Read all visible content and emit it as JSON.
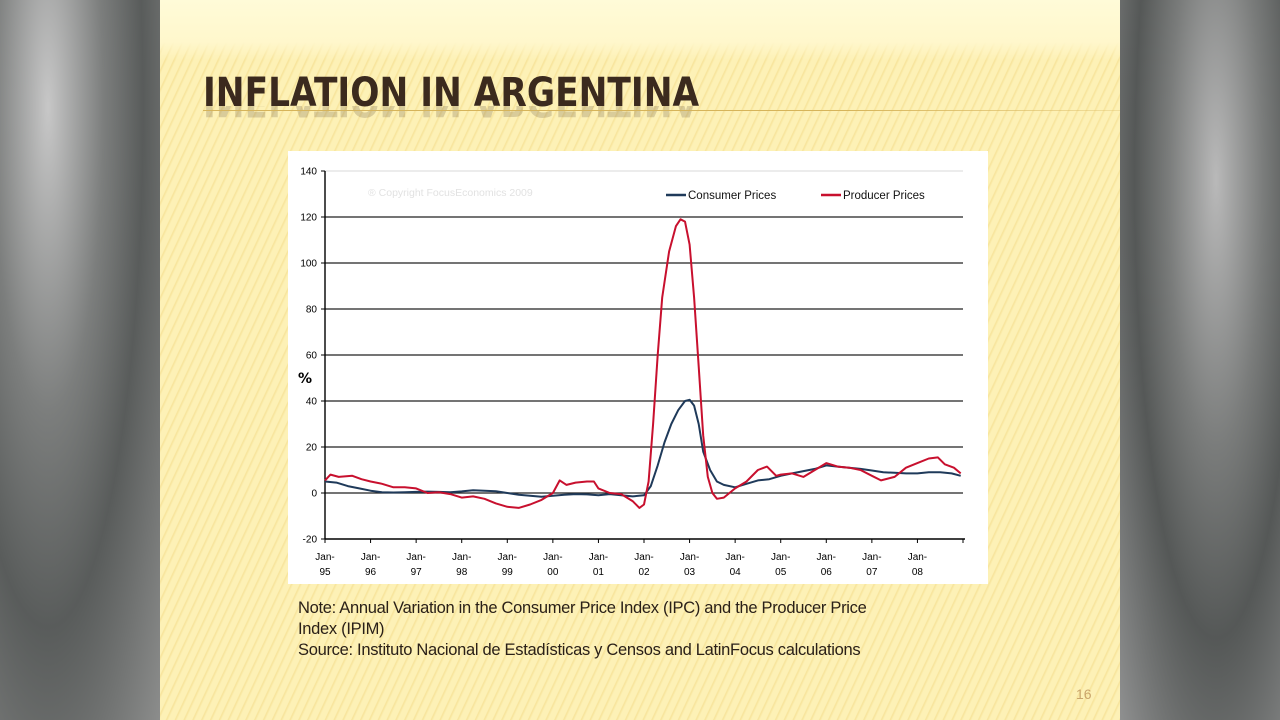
{
  "slide": {
    "title": "INFLATION IN ARGENTINA",
    "note_line1": "Note: Annual Variation in the Consumer Price Index (IPC) and the Producer Price",
    "note_line2": "Index (IPIM)",
    "source": "Source: Instituto Nacional de Estadísticas y Censos and LatinFocus calculations",
    "page_number": "16"
  },
  "chart_data": {
    "type": "line",
    "title": "",
    "watermark": "® Copyright FocusEconomics 2009",
    "xlabel": "",
    "ylabel": "%",
    "ylim": [
      -20,
      140
    ],
    "yticks": [
      -20,
      0,
      20,
      40,
      60,
      80,
      100,
      120,
      140
    ],
    "ytick_labels": [
      "-20",
      "0",
      "20",
      "40",
      "60",
      "80",
      "100",
      "120",
      "140"
    ],
    "xlim": [
      1995.0,
      2009.0
    ],
    "xticks": [
      1995,
      1996,
      1997,
      1998,
      1999,
      2000,
      2001,
      2002,
      2003,
      2004,
      2005,
      2006,
      2007,
      2008
    ],
    "xtick_labels": [
      [
        "Jan-",
        "95"
      ],
      [
        "Jan-",
        "96"
      ],
      [
        "Jan-",
        "97"
      ],
      [
        "Jan-",
        "98"
      ],
      [
        "Jan-",
        "99"
      ],
      [
        "Jan-",
        "00"
      ],
      [
        "Jan-",
        "01"
      ],
      [
        "Jan-",
        "02"
      ],
      [
        "Jan-",
        "03"
      ],
      [
        "Jan-",
        "04"
      ],
      [
        "Jan-",
        "05"
      ],
      [
        "Jan-",
        "06"
      ],
      [
        "Jan-",
        "07"
      ],
      [
        "Jan-",
        "08"
      ]
    ],
    "grid": true,
    "legend_position": "top-right",
    "series": [
      {
        "name": "Consumer Prices",
        "color": "#1f3a5a",
        "points": [
          [
            1995.0,
            5
          ],
          [
            1995.25,
            4.5
          ],
          [
            1995.5,
            3
          ],
          [
            1995.75,
            2
          ],
          [
            1996.0,
            1
          ],
          [
            1996.25,
            0.3
          ],
          [
            1996.5,
            0.2
          ],
          [
            1996.75,
            0.3
          ],
          [
            1997.0,
            0.5
          ],
          [
            1997.25,
            0.6
          ],
          [
            1997.5,
            0.5
          ],
          [
            1997.75,
            0.3
          ],
          [
            1998.0,
            0.7
          ],
          [
            1998.25,
            1.2
          ],
          [
            1998.5,
            1
          ],
          [
            1998.75,
            0.8
          ],
          [
            1999.0,
            0
          ],
          [
            1999.25,
            -0.8
          ],
          [
            1999.5,
            -1.2
          ],
          [
            1999.75,
            -1.6
          ],
          [
            2000.0,
            -1.2
          ],
          [
            2000.25,
            -0.8
          ],
          [
            2000.5,
            -0.5
          ],
          [
            2000.75,
            -0.6
          ],
          [
            2001.0,
            -1
          ],
          [
            2001.25,
            -0.5
          ],
          [
            2001.5,
            -1
          ],
          [
            2001.75,
            -1.5
          ],
          [
            2002.0,
            -1
          ],
          [
            2002.15,
            3
          ],
          [
            2002.3,
            12
          ],
          [
            2002.45,
            22
          ],
          [
            2002.6,
            30
          ],
          [
            2002.75,
            36
          ],
          [
            2002.9,
            40
          ],
          [
            2003.0,
            40.5
          ],
          [
            2003.1,
            38
          ],
          [
            2003.2,
            30
          ],
          [
            2003.3,
            18
          ],
          [
            2003.45,
            10
          ],
          [
            2003.6,
            5
          ],
          [
            2003.75,
            3.5
          ],
          [
            2004.0,
            2.5
          ],
          [
            2004.25,
            4
          ],
          [
            2004.5,
            5.5
          ],
          [
            2004.75,
            6
          ],
          [
            2005.0,
            7.5
          ],
          [
            2005.25,
            8.5
          ],
          [
            2005.5,
            9.5
          ],
          [
            2005.75,
            10.5
          ],
          [
            2006.0,
            12
          ],
          [
            2006.25,
            11.5
          ],
          [
            2006.5,
            11
          ],
          [
            2006.75,
            10.5
          ],
          [
            2007.0,
            9.8
          ],
          [
            2007.25,
            9
          ],
          [
            2007.5,
            8.8
          ],
          [
            2007.75,
            8.5
          ],
          [
            2008.0,
            8.5
          ],
          [
            2008.25,
            9
          ],
          [
            2008.5,
            9
          ],
          [
            2008.75,
            8.5
          ],
          [
            2008.95,
            7.5
          ]
        ]
      },
      {
        "name": "Producer Prices",
        "color": "#c8102e",
        "points": [
          [
            1995.0,
            5.5
          ],
          [
            1995.12,
            8
          ],
          [
            1995.3,
            7
          ],
          [
            1995.6,
            7.5
          ],
          [
            1995.8,
            6
          ],
          [
            1996.0,
            5
          ],
          [
            1996.25,
            4
          ],
          [
            1996.5,
            2.5
          ],
          [
            1996.75,
            2.5
          ],
          [
            1997.0,
            2
          ],
          [
            1997.25,
            0
          ],
          [
            1997.5,
            0.3
          ],
          [
            1997.75,
            -0.5
          ],
          [
            1998.0,
            -2
          ],
          [
            1998.25,
            -1.5
          ],
          [
            1998.5,
            -2.5
          ],
          [
            1998.75,
            -4.5
          ],
          [
            1999.0,
            -6
          ],
          [
            1999.25,
            -6.5
          ],
          [
            1999.5,
            -5
          ],
          [
            1999.75,
            -3
          ],
          [
            2000.0,
            0
          ],
          [
            2000.15,
            5.5
          ],
          [
            2000.3,
            3.5
          ],
          [
            2000.5,
            4.5
          ],
          [
            2000.75,
            5
          ],
          [
            2000.9,
            5
          ],
          [
            2001.0,
            2
          ],
          [
            2001.25,
            0
          ],
          [
            2001.5,
            -0.5
          ],
          [
            2001.75,
            -3.5
          ],
          [
            2001.9,
            -6.5
          ],
          [
            2002.0,
            -5
          ],
          [
            2002.1,
            5
          ],
          [
            2002.2,
            30
          ],
          [
            2002.3,
            60
          ],
          [
            2002.4,
            85
          ],
          [
            2002.55,
            105
          ],
          [
            2002.7,
            116
          ],
          [
            2002.8,
            119
          ],
          [
            2002.9,
            118
          ],
          [
            2003.0,
            108
          ],
          [
            2003.1,
            85
          ],
          [
            2003.2,
            55
          ],
          [
            2003.3,
            25
          ],
          [
            2003.4,
            7
          ],
          [
            2003.5,
            0
          ],
          [
            2003.6,
            -2.5
          ],
          [
            2003.75,
            -2
          ],
          [
            2004.0,
            2
          ],
          [
            2004.25,
            5
          ],
          [
            2004.5,
            10
          ],
          [
            2004.7,
            11.5
          ],
          [
            2004.9,
            7.5
          ],
          [
            2005.0,
            8
          ],
          [
            2005.25,
            8.5
          ],
          [
            2005.5,
            7
          ],
          [
            2005.75,
            10
          ],
          [
            2006.0,
            13
          ],
          [
            2006.25,
            11.5
          ],
          [
            2006.5,
            11
          ],
          [
            2006.75,
            10
          ],
          [
            2007.0,
            7.5
          ],
          [
            2007.2,
            5.5
          ],
          [
            2007.5,
            7
          ],
          [
            2007.75,
            11
          ],
          [
            2008.0,
            13
          ],
          [
            2008.25,
            15
          ],
          [
            2008.45,
            15.5
          ],
          [
            2008.6,
            12.5
          ],
          [
            2008.8,
            11
          ],
          [
            2008.95,
            8.5
          ]
        ]
      }
    ]
  }
}
